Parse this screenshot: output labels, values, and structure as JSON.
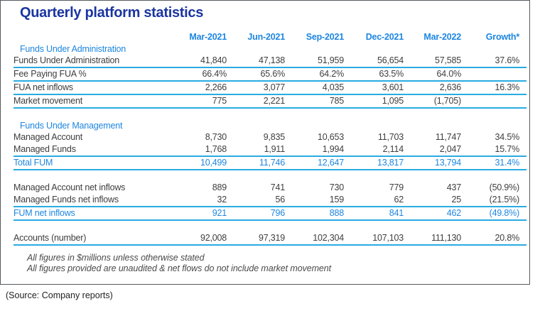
{
  "title": "Quarterly platform statistics",
  "columns": [
    "Mar-2021",
    "Jun-2021",
    "Sep-2021",
    "Dec-2021",
    "Mar-2022",
    "Growth*"
  ],
  "sections": [
    {
      "header": "Funds Under Administration",
      "rows": [
        {
          "label": "Funds Under Administration",
          "values": [
            "41,840",
            "47,138",
            "51,959",
            "56,654",
            "57,585",
            "37.6%"
          ],
          "underline": true
        },
        {
          "label": "Fee Paying FUA %",
          "values": [
            "66.4%",
            "65.6%",
            "64.2%",
            "63.5%",
            "64.0%",
            ""
          ],
          "underline": true
        },
        {
          "label": "FUA net inflows",
          "values": [
            "2,266",
            "3,077",
            "4,035",
            "3,601",
            "2,636",
            "16.3%"
          ],
          "underline": true
        },
        {
          "label": "Market movement",
          "values": [
            "775",
            "2,221",
            "785",
            "1,095",
            "(1,705)",
            ""
          ],
          "underline": true
        }
      ]
    },
    {
      "header": "Funds Under Management",
      "rows": [
        {
          "label": "Managed Account",
          "values": [
            "8,730",
            "9,835",
            "10,653",
            "11,703",
            "11,747",
            "34.5%"
          ]
        },
        {
          "label": "Managed Funds",
          "values": [
            "1,768",
            "1,911",
            "1,994",
            "2,114",
            "2,047",
            "15.7%"
          ],
          "underline": true
        },
        {
          "label": "Total FUM",
          "values": [
            "10,499",
            "11,746",
            "12,647",
            "13,817",
            "13,794",
            "31.4%"
          ],
          "highlight": true,
          "underline": true
        }
      ]
    },
    {
      "header": null,
      "rows": [
        {
          "label": "Managed Account net inflows",
          "values": [
            "889",
            "741",
            "730",
            "779",
            "437",
            "(50.9%)"
          ]
        },
        {
          "label": "Managed Funds net inflows",
          "values": [
            "32",
            "56",
            "159",
            "62",
            "25",
            "(21.5%)"
          ],
          "underline": true
        },
        {
          "label": "FUM net inflows",
          "values": [
            "921",
            "796",
            "888",
            "841",
            "462",
            "(49.8%)"
          ],
          "highlight": true,
          "underline": true
        }
      ]
    },
    {
      "header": null,
      "rows": [
        {
          "label": "Accounts (number)",
          "values": [
            "92,008",
            "97,319",
            "102,304",
            "107,103",
            "111,130",
            "20.8%"
          ],
          "underline": true
        }
      ]
    }
  ],
  "footnotes": [
    "All figures in $millions unless otherwise stated",
    "All figures provided are unaudited & net flows do not include market movement"
  ],
  "source": "(Source: Company reports)",
  "colors": {
    "title_navy": "#1b35a0",
    "accent_blue": "#1e86e0",
    "rule_cyan": "#29abe2",
    "body_text": "#3e3e3e",
    "frame_border": "#555a5e"
  },
  "chart_data": {
    "type": "table",
    "title": "Quarterly platform statistics",
    "columns": [
      "Mar-2021",
      "Jun-2021",
      "Sep-2021",
      "Dec-2021",
      "Mar-2022",
      "Growth*"
    ],
    "rows": [
      [
        "Funds Under Administration",
        "41,840",
        "47,138",
        "51,959",
        "56,654",
        "57,585",
        "37.6%"
      ],
      [
        "Fee Paying FUA %",
        "66.4%",
        "65.6%",
        "64.2%",
        "63.5%",
        "64.0%",
        ""
      ],
      [
        "FUA net inflows",
        "2,266",
        "3,077",
        "4,035",
        "3,601",
        "2,636",
        "16.3%"
      ],
      [
        "Market movement",
        "775",
        "2,221",
        "785",
        "1,095",
        "(1,705)",
        ""
      ],
      [
        "Managed Account",
        "8,730",
        "9,835",
        "10,653",
        "11,703",
        "11,747",
        "34.5%"
      ],
      [
        "Managed Funds",
        "1,768",
        "1,911",
        "1,994",
        "2,114",
        "2,047",
        "15.7%"
      ],
      [
        "Total FUM",
        "10,499",
        "11,746",
        "12,647",
        "13,817",
        "13,794",
        "31.4%"
      ],
      [
        "Managed Account net inflows",
        "889",
        "741",
        "730",
        "779",
        "437",
        "(50.9%)"
      ],
      [
        "Managed Funds net inflows",
        "32",
        "56",
        "159",
        "62",
        "25",
        "(21.5%)"
      ],
      [
        "FUM net inflows",
        "921",
        "796",
        "888",
        "841",
        "462",
        "(49.8%)"
      ],
      [
        "Accounts (number)",
        "92,008",
        "97,319",
        "102,304",
        "107,103",
        "111,130",
        "20.8%"
      ]
    ]
  }
}
